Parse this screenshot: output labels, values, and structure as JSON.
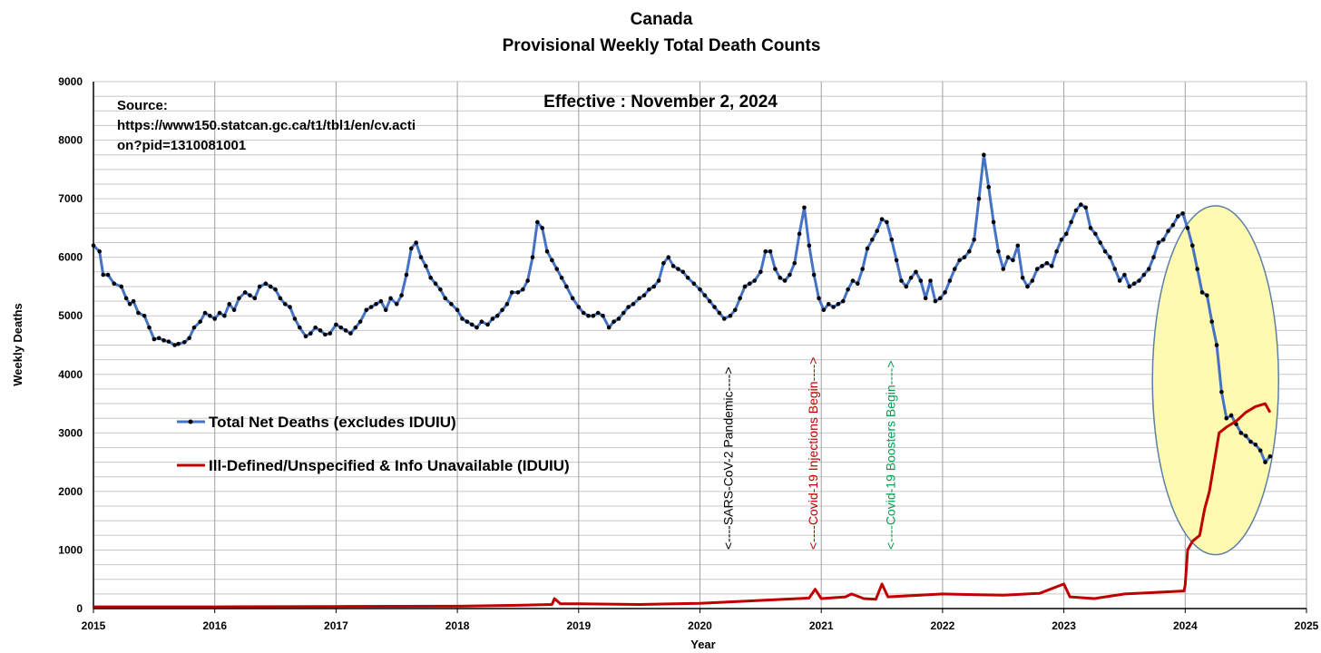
{
  "chart_data": {
    "type": "line",
    "title": "Canada",
    "subtitle": "Provisional Weekly Total Death Counts",
    "xlabel": "Year",
    "ylabel": "Weekly Deaths",
    "xlim": [
      2015,
      2025
    ],
    "ylim": [
      0,
      9000
    ],
    "x_ticks": [
      2015,
      2016,
      2017,
      2018,
      2019,
      2020,
      2021,
      2022,
      2023,
      2024,
      2025
    ],
    "x_tick_labels": [
      "2015",
      "2016",
      "2017",
      "2018",
      "2019",
      "2020",
      "2021",
      "2022",
      "2023",
      "2024",
      "2025"
    ],
    "y_ticks": [
      0,
      1000,
      2000,
      3000,
      4000,
      5000,
      6000,
      7000,
      8000,
      9000
    ],
    "y_tick_labels": [
      "0",
      "1000",
      "2000",
      "3000",
      "4000",
      "5000",
      "6000",
      "7000",
      "8000",
      "9000"
    ],
    "grid": true,
    "effective_label": "Effective : November 2, 2024",
    "source_lines": [
      "Source:",
      "https://www150.statcan.gc.ca/t1/tbl1/en/cv.acti",
      "on?pid=1310081001"
    ],
    "annotations": [
      {
        "x": 2020.23,
        "text": "<----SARS-CoV-2 Pandemic---->",
        "color": "#000000"
      },
      {
        "x": 2020.93,
        "text": "<----Covid-19 Injections Begin---->",
        "color": "#c00000"
      },
      {
        "x": 2021.57,
        "text": "<----Covid-19 Boosters Begin---->",
        "color": "#00a050"
      }
    ],
    "highlight_ellipse": {
      "center_x": 2024.25,
      "center_y": 3900,
      "radius_years": 0.52,
      "radius_deaths": 2980,
      "color": "#fffab0"
    },
    "series": [
      {
        "name": "Total Net Deaths (excludes IDUIU)",
        "color": "#4472c4",
        "marker_color": "#000000",
        "points": [
          [
            2015.0,
            6200
          ],
          [
            2015.05,
            6100
          ],
          [
            2015.08,
            5700
          ],
          [
            2015.12,
            5700
          ],
          [
            2015.17,
            5550
          ],
          [
            2015.23,
            5500
          ],
          [
            2015.27,
            5300
          ],
          [
            2015.3,
            5200
          ],
          [
            2015.33,
            5250
          ],
          [
            2015.37,
            5050
          ],
          [
            2015.42,
            5000
          ],
          [
            2015.46,
            4800
          ],
          [
            2015.5,
            4600
          ],
          [
            2015.54,
            4620
          ],
          [
            2015.58,
            4580
          ],
          [
            2015.62,
            4560
          ],
          [
            2015.67,
            4500
          ],
          [
            2015.7,
            4520
          ],
          [
            2015.75,
            4550
          ],
          [
            2015.79,
            4620
          ],
          [
            2015.83,
            4800
          ],
          [
            2015.88,
            4900
          ],
          [
            2015.92,
            5050
          ],
          [
            2015.96,
            5000
          ],
          [
            2016.0,
            4950
          ],
          [
            2016.04,
            5050
          ],
          [
            2016.08,
            5000
          ],
          [
            2016.12,
            5200
          ],
          [
            2016.16,
            5100
          ],
          [
            2016.2,
            5300
          ],
          [
            2016.25,
            5400
          ],
          [
            2016.29,
            5350
          ],
          [
            2016.33,
            5300
          ],
          [
            2016.37,
            5500
          ],
          [
            2016.42,
            5550
          ],
          [
            2016.46,
            5500
          ],
          [
            2016.5,
            5450
          ],
          [
            2016.54,
            5300
          ],
          [
            2016.58,
            5200
          ],
          [
            2016.62,
            5150
          ],
          [
            2016.66,
            4950
          ],
          [
            2016.7,
            4800
          ],
          [
            2016.75,
            4650
          ],
          [
            2016.79,
            4700
          ],
          [
            2016.83,
            4800
          ],
          [
            2016.87,
            4750
          ],
          [
            2016.91,
            4680
          ],
          [
            2016.95,
            4700
          ],
          [
            2017.0,
            4850
          ],
          [
            2017.04,
            4800
          ],
          [
            2017.08,
            4750
          ],
          [
            2017.12,
            4700
          ],
          [
            2017.16,
            4800
          ],
          [
            2017.2,
            4900
          ],
          [
            2017.25,
            5100
          ],
          [
            2017.29,
            5150
          ],
          [
            2017.33,
            5200
          ],
          [
            2017.37,
            5250
          ],
          [
            2017.41,
            5100
          ],
          [
            2017.45,
            5300
          ],
          [
            2017.5,
            5200
          ],
          [
            2017.54,
            5350
          ],
          [
            2017.58,
            5700
          ],
          [
            2017.62,
            6150
          ],
          [
            2017.66,
            6250
          ],
          [
            2017.7,
            6000
          ],
          [
            2017.74,
            5850
          ],
          [
            2017.78,
            5650
          ],
          [
            2017.82,
            5550
          ],
          [
            2017.86,
            5450
          ],
          [
            2017.9,
            5300
          ],
          [
            2017.95,
            5200
          ],
          [
            2018.0,
            5100
          ],
          [
            2018.04,
            4950
          ],
          [
            2018.08,
            4900
          ],
          [
            2018.12,
            4850
          ],
          [
            2018.16,
            4800
          ],
          [
            2018.2,
            4900
          ],
          [
            2018.25,
            4850
          ],
          [
            2018.29,
            4950
          ],
          [
            2018.33,
            5000
          ],
          [
            2018.37,
            5100
          ],
          [
            2018.41,
            5200
          ],
          [
            2018.45,
            5400
          ],
          [
            2018.5,
            5400
          ],
          [
            2018.54,
            5450
          ],
          [
            2018.58,
            5600
          ],
          [
            2018.62,
            6000
          ],
          [
            2018.66,
            6600
          ],
          [
            2018.7,
            6500
          ],
          [
            2018.74,
            6100
          ],
          [
            2018.78,
            5950
          ],
          [
            2018.82,
            5800
          ],
          [
            2018.86,
            5650
          ],
          [
            2018.9,
            5500
          ],
          [
            2018.95,
            5300
          ],
          [
            2019.0,
            5150
          ],
          [
            2019.04,
            5050
          ],
          [
            2019.08,
            5000
          ],
          [
            2019.12,
            5000
          ],
          [
            2019.16,
            5050
          ],
          [
            2019.2,
            5000
          ],
          [
            2019.25,
            4800
          ],
          [
            2019.29,
            4900
          ],
          [
            2019.33,
            4950
          ],
          [
            2019.37,
            5050
          ],
          [
            2019.41,
            5150
          ],
          [
            2019.45,
            5200
          ],
          [
            2019.5,
            5300
          ],
          [
            2019.54,
            5350
          ],
          [
            2019.58,
            5450
          ],
          [
            2019.62,
            5500
          ],
          [
            2019.66,
            5600
          ],
          [
            2019.7,
            5900
          ],
          [
            2019.74,
            6000
          ],
          [
            2019.78,
            5850
          ],
          [
            2019.82,
            5800
          ],
          [
            2019.86,
            5750
          ],
          [
            2019.9,
            5650
          ],
          [
            2019.95,
            5550
          ],
          [
            2020.0,
            5450
          ],
          [
            2020.04,
            5350
          ],
          [
            2020.08,
            5250
          ],
          [
            2020.12,
            5150
          ],
          [
            2020.16,
            5050
          ],
          [
            2020.2,
            4950
          ],
          [
            2020.25,
            5000
          ],
          [
            2020.29,
            5100
          ],
          [
            2020.33,
            5300
          ],
          [
            2020.37,
            5500
          ],
          [
            2020.41,
            5550
          ],
          [
            2020.45,
            5600
          ],
          [
            2020.5,
            5750
          ],
          [
            2020.54,
            6100
          ],
          [
            2020.58,
            6100
          ],
          [
            2020.62,
            5800
          ],
          [
            2020.66,
            5650
          ],
          [
            2020.7,
            5600
          ],
          [
            2020.74,
            5700
          ],
          [
            2020.78,
            5900
          ],
          [
            2020.82,
            6400
          ],
          [
            2020.86,
            6850
          ],
          [
            2020.9,
            6200
          ],
          [
            2020.94,
            5700
          ],
          [
            2020.98,
            5300
          ],
          [
            2021.02,
            5100
          ],
          [
            2021.06,
            5200
          ],
          [
            2021.1,
            5150
          ],
          [
            2021.14,
            5200
          ],
          [
            2021.18,
            5250
          ],
          [
            2021.22,
            5450
          ],
          [
            2021.26,
            5600
          ],
          [
            2021.3,
            5550
          ],
          [
            2021.34,
            5800
          ],
          [
            2021.38,
            6150
          ],
          [
            2021.42,
            6300
          ],
          [
            2021.46,
            6450
          ],
          [
            2021.5,
            6650
          ],
          [
            2021.54,
            6600
          ],
          [
            2021.58,
            6300
          ],
          [
            2021.62,
            5950
          ],
          [
            2021.66,
            5600
          ],
          [
            2021.7,
            5500
          ],
          [
            2021.74,
            5650
          ],
          [
            2021.78,
            5750
          ],
          [
            2021.82,
            5600
          ],
          [
            2021.86,
            5300
          ],
          [
            2021.9,
            5600
          ],
          [
            2021.94,
            5250
          ],
          [
            2021.98,
            5300
          ],
          [
            2022.02,
            5400
          ],
          [
            2022.06,
            5600
          ],
          [
            2022.1,
            5800
          ],
          [
            2022.14,
            5950
          ],
          [
            2022.18,
            6000
          ],
          [
            2022.22,
            6100
          ],
          [
            2022.26,
            6300
          ],
          [
            2022.3,
            7000
          ],
          [
            2022.34,
            7750
          ],
          [
            2022.38,
            7200
          ],
          [
            2022.42,
            6600
          ],
          [
            2022.46,
            6100
          ],
          [
            2022.5,
            5800
          ],
          [
            2022.54,
            6000
          ],
          [
            2022.58,
            5950
          ],
          [
            2022.62,
            6200
          ],
          [
            2022.66,
            5650
          ],
          [
            2022.7,
            5500
          ],
          [
            2022.74,
            5600
          ],
          [
            2022.78,
            5800
          ],
          [
            2022.82,
            5850
          ],
          [
            2022.86,
            5900
          ],
          [
            2022.9,
            5850
          ],
          [
            2022.94,
            6100
          ],
          [
            2022.98,
            6300
          ],
          [
            2023.02,
            6400
          ],
          [
            2023.06,
            6600
          ],
          [
            2023.1,
            6800
          ],
          [
            2023.14,
            6900
          ],
          [
            2023.18,
            6850
          ],
          [
            2023.22,
            6500
          ],
          [
            2023.26,
            6400
          ],
          [
            2023.3,
            6250
          ],
          [
            2023.34,
            6100
          ],
          [
            2023.38,
            6000
          ],
          [
            2023.42,
            5800
          ],
          [
            2023.46,
            5600
          ],
          [
            2023.5,
            5700
          ],
          [
            2023.54,
            5500
          ],
          [
            2023.58,
            5550
          ],
          [
            2023.62,
            5600
          ],
          [
            2023.66,
            5700
          ],
          [
            2023.7,
            5800
          ],
          [
            2023.74,
            6000
          ],
          [
            2023.78,
            6250
          ],
          [
            2023.82,
            6300
          ],
          [
            2023.86,
            6450
          ],
          [
            2023.9,
            6550
          ],
          [
            2023.94,
            6700
          ],
          [
            2023.98,
            6750
          ],
          [
            2024.02,
            6500
          ],
          [
            2024.06,
            6200
          ],
          [
            2024.1,
            5800
          ],
          [
            2024.14,
            5400
          ],
          [
            2024.18,
            5350
          ],
          [
            2024.22,
            4900
          ],
          [
            2024.26,
            4500
          ],
          [
            2024.3,
            3700
          ],
          [
            2024.34,
            3250
          ],
          [
            2024.38,
            3300
          ],
          [
            2024.42,
            3150
          ],
          [
            2024.46,
            3000
          ],
          [
            2024.5,
            2950
          ],
          [
            2024.54,
            2850
          ],
          [
            2024.58,
            2800
          ],
          [
            2024.62,
            2700
          ],
          [
            2024.66,
            2500
          ],
          [
            2024.7,
            2600
          ]
        ]
      },
      {
        "name": "Ill-Defined/Unspecified & Info Unavailable (IDUIU)",
        "color": "#c00000",
        "points": [
          [
            2015.0,
            30
          ],
          [
            2016.0,
            30
          ],
          [
            2017.0,
            35
          ],
          [
            2018.0,
            40
          ],
          [
            2018.5,
            55
          ],
          [
            2018.78,
            70
          ],
          [
            2018.8,
            170
          ],
          [
            2018.85,
            80
          ],
          [
            2019.0,
            80
          ],
          [
            2019.5,
            70
          ],
          [
            2020.0,
            90
          ],
          [
            2020.5,
            140
          ],
          [
            2020.9,
            180
          ],
          [
            2020.95,
            330
          ],
          [
            2021.0,
            170
          ],
          [
            2021.2,
            200
          ],
          [
            2021.25,
            250
          ],
          [
            2021.35,
            170
          ],
          [
            2021.45,
            160
          ],
          [
            2021.5,
            420
          ],
          [
            2021.55,
            200
          ],
          [
            2022.0,
            250
          ],
          [
            2022.2,
            240
          ],
          [
            2022.5,
            230
          ],
          [
            2022.8,
            260
          ],
          [
            2023.0,
            420
          ],
          [
            2023.05,
            200
          ],
          [
            2023.25,
            170
          ],
          [
            2023.5,
            250
          ],
          [
            2023.8,
            280
          ],
          [
            2023.99,
            300
          ],
          [
            2024.0,
            400
          ],
          [
            2024.02,
            1000
          ],
          [
            2024.06,
            1150
          ],
          [
            2024.12,
            1250
          ],
          [
            2024.16,
            1700
          ],
          [
            2024.2,
            2000
          ],
          [
            2024.24,
            2500
          ],
          [
            2024.28,
            3000
          ],
          [
            2024.34,
            3100
          ],
          [
            2024.42,
            3200
          ],
          [
            2024.5,
            3350
          ],
          [
            2024.58,
            3450
          ],
          [
            2024.66,
            3500
          ],
          [
            2024.7,
            3350
          ]
        ]
      }
    ]
  }
}
